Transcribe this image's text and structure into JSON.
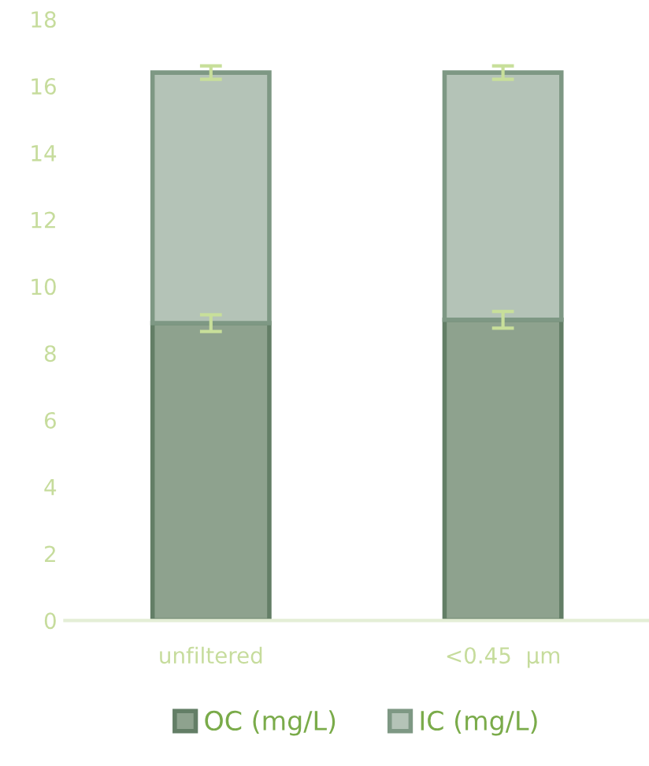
{
  "chart_data": {
    "type": "bar",
    "stacked": true,
    "categories": [
      "unfiltered",
      "<0.45  µm"
    ],
    "series": [
      {
        "name": "OC (mg/L)",
        "color": "#8ea28e",
        "values": [
          8.9,
          9.0
        ],
        "errors": [
          0.25,
          0.25
        ]
      },
      {
        "name": "IC (mg/L)",
        "color": "#b4c3b7",
        "values": [
          7.5,
          7.4
        ],
        "errors": [
          0.2,
          0.2
        ]
      }
    ],
    "ylim": [
      0,
      18
    ],
    "yticks": [
      0,
      2,
      4,
      6,
      8,
      10,
      12,
      14,
      16,
      18
    ],
    "grid": false,
    "legend": "bottom"
  }
}
